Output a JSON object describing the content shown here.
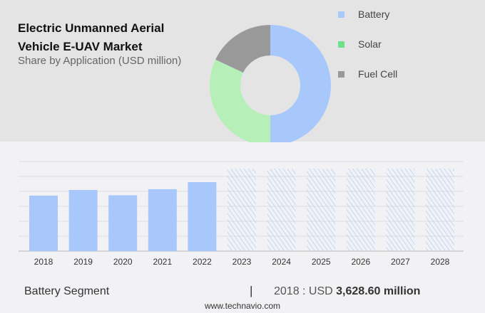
{
  "chart_data": [
    {
      "type": "pie",
      "title": "Electric Unmanned Aerial Vehicle E-UAV Market",
      "subtitle": "Share by Application (USD million)",
      "donut": true,
      "slices": [
        {
          "name": "Battery",
          "value": 50,
          "color": "#a8c8fc"
        },
        {
          "name": "Solar",
          "value": 32,
          "color": "#b6efb8"
        },
        {
          "name": "Fuel Cell",
          "value": 18,
          "color": "#999999"
        }
      ],
      "legend": "right"
    },
    {
      "type": "bar",
      "categories": [
        "2018",
        "2019",
        "2020",
        "2021",
        "2022",
        "2023",
        "2024",
        "2025",
        "2026",
        "2027",
        "2028"
      ],
      "values": [
        3628.6,
        4000,
        3650,
        4050,
        4510,
        null,
        null,
        null,
        null,
        null,
        null
      ],
      "forecast": [
        false,
        false,
        false,
        false,
        false,
        true,
        true,
        true,
        true,
        true,
        true
      ],
      "ylim": [
        0,
        5860
      ],
      "grid": true,
      "bar_color": "#a8c8fc"
    }
  ],
  "footer": {
    "segment": "Battery Segment",
    "separator": "|",
    "year_label": "2018 : USD ",
    "value": "3,628.60 million",
    "site": "www.technavio.com"
  }
}
